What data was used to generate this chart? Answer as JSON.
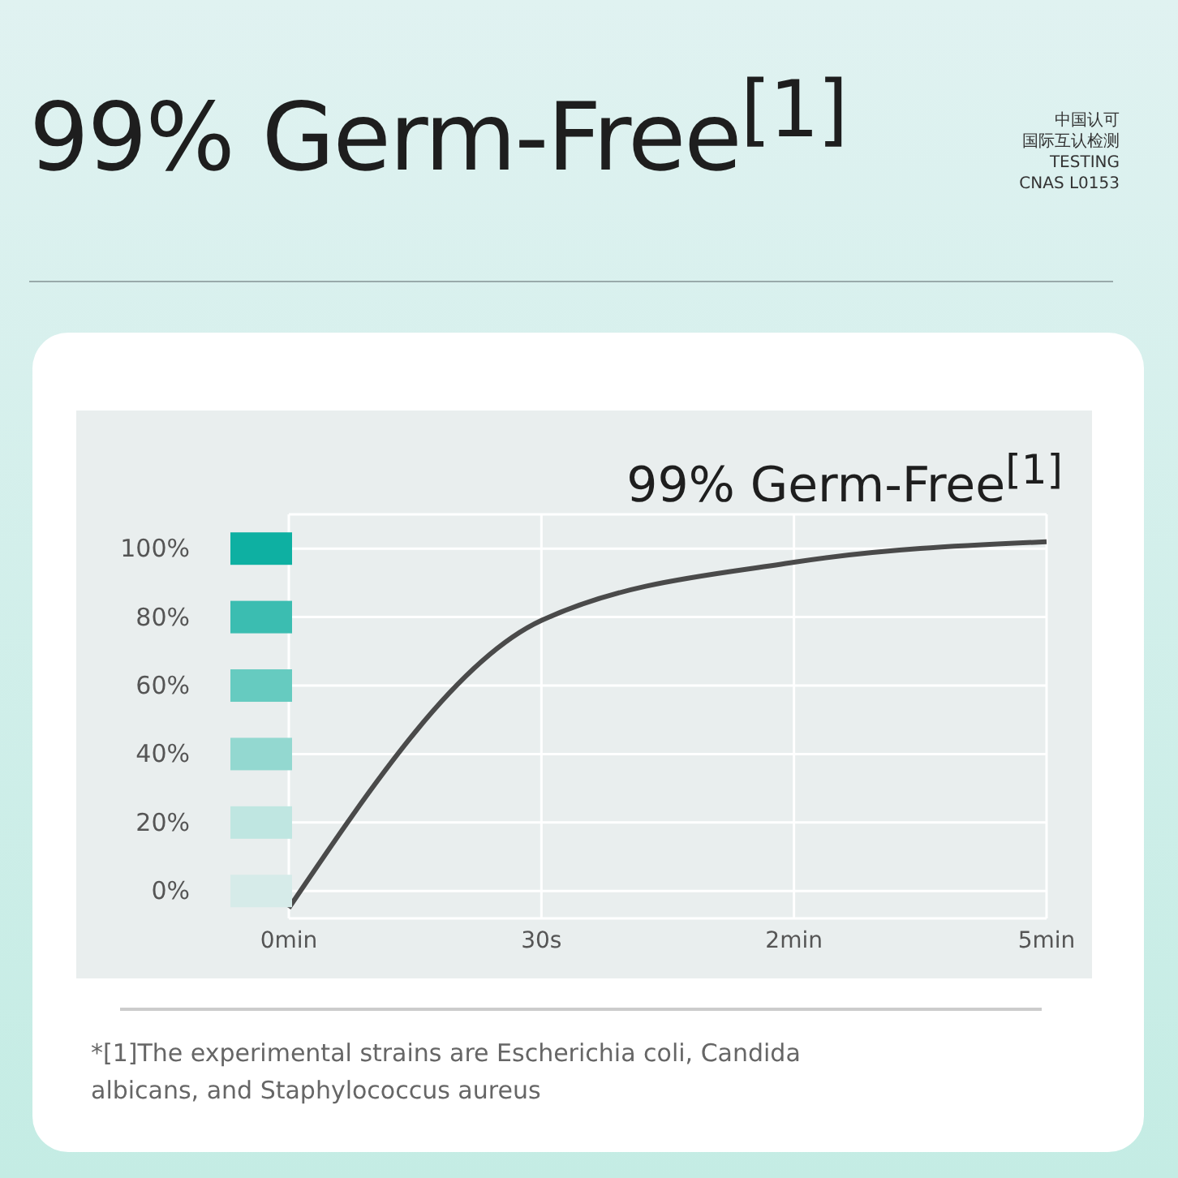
{
  "chart_data": {
    "type": "line",
    "title": "99% Germ-Free$^{[1]}$",
    "categories": [
      "0min",
      "30s",
      "2min",
      "5min"
    ],
    "series": [
      {
        "color": "#4a4a4a",
        "values": [
          -5,
          79,
          96,
          102
        ]
      }
    ],
    "ylim": [
      -8,
      110
    ],
    "yticks": [
      {
        "value": 0,
        "label": "0%"
      },
      {
        "value": 20,
        "label": "20%"
      },
      {
        "value": 40,
        "label": "40%"
      },
      {
        "value": 60,
        "label": "60%"
      },
      {
        "value": 80,
        "label": "80%"
      },
      {
        "value": 100,
        "label": "100%"
      }
    ],
    "grid": true,
    "marker": "none",
    "line_style": "solid",
    "annotations": [
      "中国认可",
      "国际互认检测",
      "TESTING",
      "CNAS L0153",
      "99% Germ-Free$^{[1]}$",
      "*[1]The experimental strains are Escherichia coli, Candida albicans, and Staphylococcus aureus"
    ]
  }
}
